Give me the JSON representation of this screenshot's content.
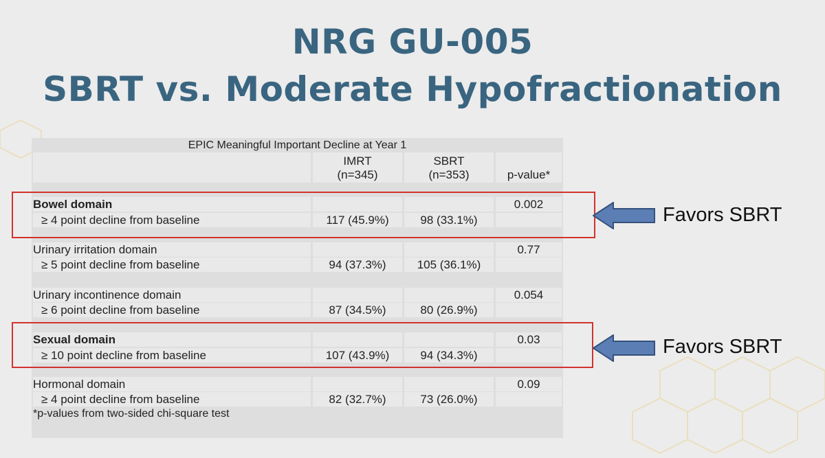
{
  "title": {
    "line1": "NRG GU-005",
    "line2": "SBRT vs. Moderate Hypofractionation"
  },
  "table": {
    "caption": "EPIC Meaningful Important Decline at Year 1",
    "columns": {
      "imrt": {
        "name": "IMRT",
        "n": "(n=345)"
      },
      "sbrt": {
        "name": "SBRT",
        "n": "(n=353)"
      },
      "pvalue": "p-value*"
    },
    "rows": [
      {
        "domain": "Bowel domain",
        "criterion": "≥ 4 point decline from baseline",
        "imrt": "117 (45.9%)",
        "sbrt": "98 (33.1%)",
        "p": "0.002",
        "bold": true
      },
      {
        "domain": "Urinary irritation domain",
        "criterion": "≥ 5 point decline from baseline",
        "imrt": "94 (37.3%)",
        "sbrt": "105 (36.1%)",
        "p": "0.77",
        "bold": false
      },
      {
        "domain": "Urinary incontinence domain",
        "criterion": "≥ 6 point decline from baseline",
        "imrt": "87 (34.5%)",
        "sbrt": "80 (26.9%)",
        "p": "0.054",
        "bold": false
      },
      {
        "domain": "Sexual domain",
        "criterion": "≥ 10 point decline from baseline",
        "imrt": "107 (43.9%)",
        "sbrt": "94 (34.3%)",
        "p": "0.03",
        "bold": true
      },
      {
        "domain": "Hormonal domain",
        "criterion": "≥ 4 point decline from baseline",
        "imrt": "82 (32.7%)",
        "sbrt": "73 (26.0%)",
        "p": "0.09",
        "bold": false
      }
    ],
    "footnote": "*p-values from two-sided chi-square test"
  },
  "annotations": {
    "favors1": "Favors SBRT",
    "favors2": "Favors SBRT",
    "highlight_color": "#d2312e",
    "arrow_color": "#5b7fb4"
  }
}
